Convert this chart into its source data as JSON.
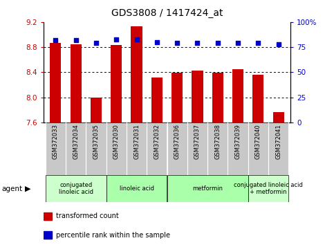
{
  "title": "GDS3808 / 1417424_at",
  "samples": [
    "GSM372033",
    "GSM372034",
    "GSM372035",
    "GSM372030",
    "GSM372031",
    "GSM372032",
    "GSM372036",
    "GSM372037",
    "GSM372038",
    "GSM372039",
    "GSM372040",
    "GSM372041"
  ],
  "bar_values": [
    8.87,
    8.85,
    8.0,
    8.83,
    9.13,
    8.32,
    8.39,
    8.43,
    8.39,
    8.45,
    8.36,
    7.77
  ],
  "dot_values": [
    82,
    82,
    79,
    83,
    83,
    80,
    79,
    79,
    79,
    79,
    79,
    78
  ],
  "bar_color": "#cc0000",
  "dot_color": "#0000cc",
  "ylim_left": [
    7.6,
    9.2
  ],
  "ylim_right": [
    0,
    100
  ],
  "yticks_left": [
    7.6,
    8.0,
    8.4,
    8.8,
    9.2
  ],
  "yticks_right": [
    0,
    25,
    50,
    75,
    100
  ],
  "ytick_labels_right": [
    "0",
    "25",
    "50",
    "75",
    "100%"
  ],
  "grid_values": [
    8.8,
    8.4,
    8.0
  ],
  "agents": [
    {
      "label": "conjugated\nlinoleic acid",
      "start": 0,
      "end": 3,
      "color": "#ccffcc"
    },
    {
      "label": "linoleic acid",
      "start": 3,
      "end": 6,
      "color": "#aaffaa"
    },
    {
      "label": "metformin",
      "start": 6,
      "end": 10,
      "color": "#aaffaa"
    },
    {
      "label": "conjugated linoleic acid\n+ metformin",
      "start": 10,
      "end": 12,
      "color": "#ccffcc"
    }
  ],
  "legend_items": [
    {
      "label": "transformed count",
      "color": "#cc0000"
    },
    {
      "label": "percentile rank within the sample",
      "color": "#0000cc"
    }
  ],
  "agent_label": "agent",
  "left_tick_color": "#cc0000",
  "right_tick_color": "#0000cc",
  "sample_bg_color": "#c8c8c8",
  "n_samples": 12
}
